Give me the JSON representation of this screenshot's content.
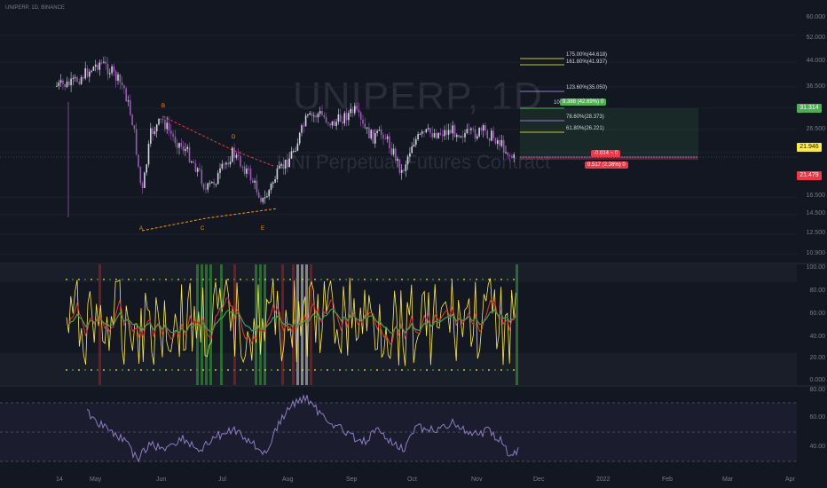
{
  "symbol": {
    "text": "UNIPERP, 1D, BINANCE",
    "watermark": "UNIPERP, 1D",
    "watermark_sub": "UNI Perpetual Futures Contract"
  },
  "colors": {
    "background": "#131722",
    "candle_up": "#d1d4dc",
    "candle_down": "#9b59b6",
    "fib_line_yellow": "#c0ca33",
    "fib_line_purple": "#9575cd",
    "green": "#4caf50",
    "red": "#f23645",
    "orange": "#ff9800",
    "osc_yellow": "#ffeb3b",
    "osc_red": "#e53935",
    "osc_green": "#43a047",
    "rsi_line": "#8e7cc3"
  },
  "price_scale": [
    "60.000",
    "52.000",
    "44.000",
    "36.500",
    "31.314",
    "26.500",
    "21.946",
    "21.479",
    "16.500",
    "14.500",
    "12.500",
    "10.900"
  ],
  "price_tags": [
    {
      "value": "31.314",
      "color": "#4caf50"
    },
    {
      "value": "21.946",
      "color": "#ffeb3b"
    },
    {
      "value": "21.479",
      "color": "#f23645"
    }
  ],
  "fib_levels": [
    {
      "label": "175.00%(44.618)"
    },
    {
      "label": "161.80%(41.937)"
    },
    {
      "label": "123.60%(35.050)"
    },
    {
      "label": "100.00%"
    },
    {
      "label": "78.60%(28.373)"
    },
    {
      "label": "61.80%(26.221)"
    }
  ],
  "wave_labels": [
    "A",
    "B",
    "C",
    "D",
    "E"
  ],
  "position": {
    "profit_text": "9.388 (42.69%) 0",
    "pl_text": "-0.014 ~ 0",
    "loss_text": "0.517 (2.36%) 0"
  },
  "osc_scale": [
    "100.00",
    "80.00",
    "60.00",
    "40.00",
    "20.00",
    "0.000"
  ],
  "rsi_scale": [
    "80.00",
    "60.00",
    "40.00"
  ],
  "time_axis": [
    "14",
    "May",
    "Jun",
    "Jul",
    "Aug",
    "Sep",
    "Oct",
    "Nov",
    "Dec",
    "2022",
    "Feb",
    "Mar",
    "Apr"
  ]
}
